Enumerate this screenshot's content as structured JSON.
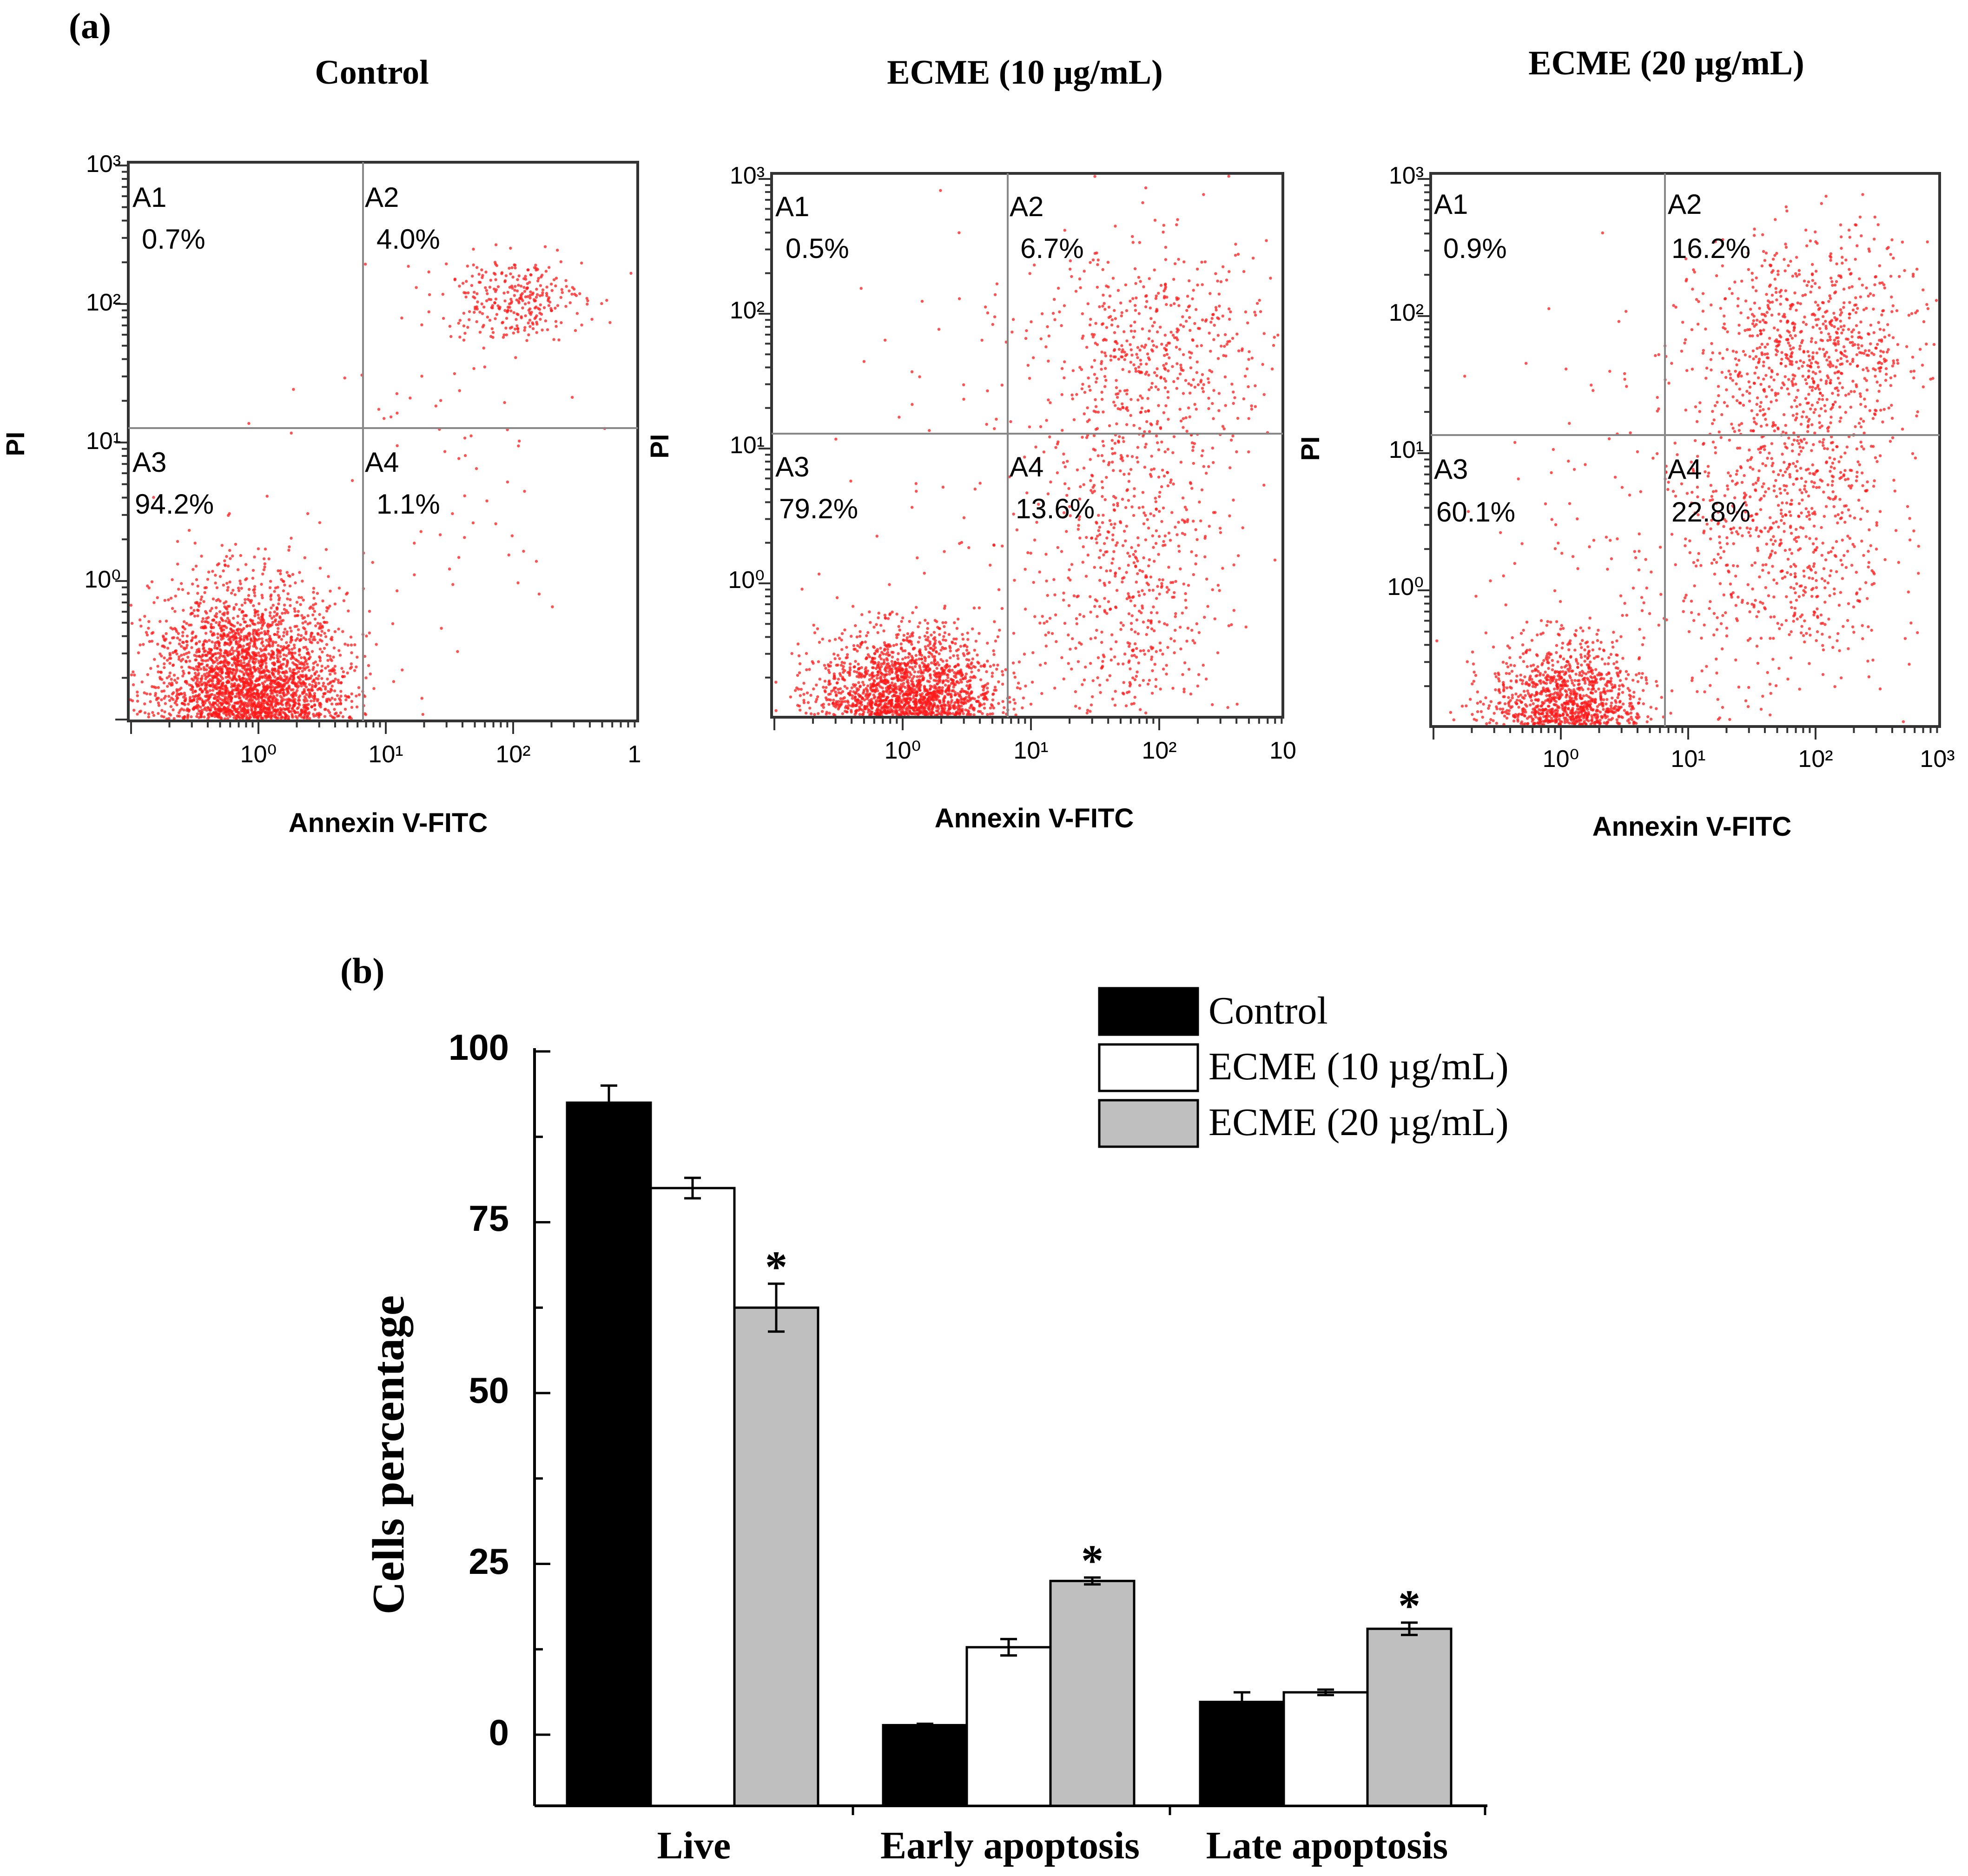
{
  "panel_labels": {
    "a": "(a)",
    "b": "(b)"
  },
  "colors": {
    "dots": "#ff1a1a",
    "frame": "#333333",
    "control": "#000000",
    "ecme10": "#ffffff",
    "ecme20": "#bfbfbf"
  },
  "chart_data": [
    {
      "type": "scatter",
      "title": "Control",
      "xlabel": "Annexin V-FITC",
      "ylabel": "PI",
      "x_ticks": [
        "10⁰",
        "10¹",
        "10²",
        "1"
      ],
      "y_ticks": [
        "10³",
        "10²",
        "10¹",
        "10⁰"
      ],
      "scale": "log",
      "quadrants": [
        {
          "name": "A1",
          "value": "0.7%"
        },
        {
          "name": "A2",
          "value": "4.0%"
        },
        {
          "name": "A3",
          "value": "94.2%"
        },
        {
          "name": "A4",
          "value": "1.1%"
        }
      ],
      "clusters": [
        {
          "cx": 0.85,
          "cy": 0.1,
          "sx": 0.38,
          "sy": 0.45,
          "n": 5200
        },
        {
          "cx": 100,
          "cy": 110,
          "sx": 0.28,
          "sy": 0.15,
          "n": 300
        },
        {
          "cx": 20,
          "cy": 5,
          "sx": 0.7,
          "sy": 0.7,
          "n": 70
        }
      ]
    },
    {
      "type": "scatter",
      "title": "ECME (10 µg/mL)",
      "xlabel": "Annexin V-FITC",
      "ylabel": "PI",
      "x_ticks": [
        "10⁰",
        "10¹",
        "10²",
        "10"
      ],
      "y_ticks": [
        "10³",
        "10²",
        "10¹",
        "10⁰"
      ],
      "scale": "log",
      "quadrants": [
        {
          "name": "A1",
          "value": "0.5%"
        },
        {
          "name": "A2",
          "value": "6.7%"
        },
        {
          "name": "A3",
          "value": "79.2%"
        },
        {
          "name": "A4",
          "value": "13.6%"
        }
      ],
      "clusters": [
        {
          "cx": 1.1,
          "cy": 0.1,
          "sx": 0.35,
          "sy": 0.3,
          "n": 3600
        },
        {
          "cx": 60,
          "cy": 0.8,
          "sx": 0.38,
          "sy": 0.8,
          "n": 650
        },
        {
          "cx": 100,
          "cy": 50,
          "sx": 0.45,
          "sy": 0.4,
          "n": 500
        },
        {
          "cx": 15,
          "cy": 5,
          "sx": 0.8,
          "sy": 0.9,
          "n": 150
        }
      ]
    },
    {
      "type": "scatter",
      "title": "ECME (20 µg/mL)",
      "xlabel": "Annexin V-FITC",
      "ylabel": "PI",
      "x_ticks": [
        "10⁰",
        "10¹",
        "10²",
        "10³"
      ],
      "y_ticks": [
        "10³",
        "10²",
        "10¹",
        "10⁰"
      ],
      "scale": "log",
      "quadrants": [
        {
          "name": "A1",
          "value": "0.9%"
        },
        {
          "name": "A2",
          "value": "16.2%"
        },
        {
          "name": "A3",
          "value": "60.1%"
        },
        {
          "name": "A4",
          "value": "22.8%"
        }
      ],
      "clusters": [
        {
          "cx": 1.1,
          "cy": 0.1,
          "sx": 0.3,
          "sy": 0.3,
          "n": 2200
        },
        {
          "cx": 60,
          "cy": 3,
          "sx": 0.4,
          "sy": 0.6,
          "n": 700
        },
        {
          "cx": 100,
          "cy": 60,
          "sx": 0.45,
          "sy": 0.4,
          "n": 800
        },
        {
          "cx": 10,
          "cy": 3,
          "sx": 0.8,
          "sy": 0.9,
          "n": 200
        }
      ]
    },
    {
      "type": "bar",
      "title": "",
      "categories": [
        "Live",
        "Early apoptosis",
        "Late apoptosis"
      ],
      "series": [
        {
          "name": "Control",
          "values": [
            92.5,
            1.4,
            4.8
          ],
          "errors": [
            2.5,
            0.2,
            1.4
          ]
        },
        {
          "name": "ECME (10 µg/mL)",
          "values": [
            80.0,
            12.8,
            6.2
          ],
          "errors": [
            1.5,
            1.2,
            0.4
          ]
        },
        {
          "name": "ECME (20 µg/mL)",
          "values": [
            62.5,
            22.5,
            15.5
          ],
          "errors": [
            3.5,
            0.5,
            0.9
          ]
        }
      ],
      "significance": [
        {
          "category": "Live",
          "series": "ECME (20 µg/mL)",
          "mark": "*"
        },
        {
          "category": "Early apoptosis",
          "series": "ECME (20 µg/mL)",
          "mark": "*"
        },
        {
          "category": "Late apoptosis",
          "series": "ECME (20 µg/mL)",
          "mark": "*"
        }
      ],
      "xlabel": "",
      "ylabel": "Cells percentage",
      "ylim": [
        -10,
        100
      ],
      "yticks": [
        "100",
        "75",
        "50",
        "25",
        "0"
      ],
      "legend_position": "top-right"
    }
  ]
}
